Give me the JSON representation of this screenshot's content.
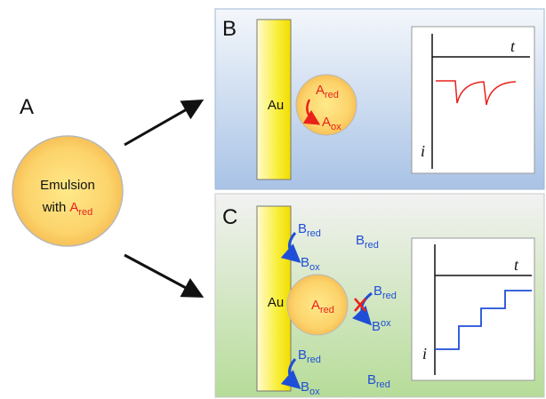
{
  "panel_a": {
    "label": "A",
    "droplet": {
      "line1": "Emulsion",
      "line2": "with",
      "species": "A",
      "species_sub": "red"
    }
  },
  "panel_b": {
    "label": "B",
    "electrode": "Au",
    "droplet": {
      "reactant": "A",
      "reactant_sub": "red",
      "product": "A",
      "product_sub": "ox"
    },
    "inset": {
      "x_label": "t",
      "y_label": "i"
    }
  },
  "panel_c": {
    "label": "C",
    "electrode": "Au",
    "droplet": {
      "species": "A",
      "species_sub": "red"
    },
    "species": [
      {
        "name": "B",
        "sub": "red"
      },
      {
        "name": "B",
        "sub": "ox"
      },
      {
        "name": "B",
        "sub": "red"
      },
      {
        "name": "B",
        "sub": "red"
      },
      {
        "name": "B",
        "sup": "ox"
      },
      {
        "name": "B",
        "sub": "red"
      },
      {
        "name": "B",
        "sub": "ox"
      },
      {
        "name": "B",
        "sub": "red"
      }
    ],
    "inset": {
      "x_label": "t",
      "y_label": "i"
    }
  }
}
